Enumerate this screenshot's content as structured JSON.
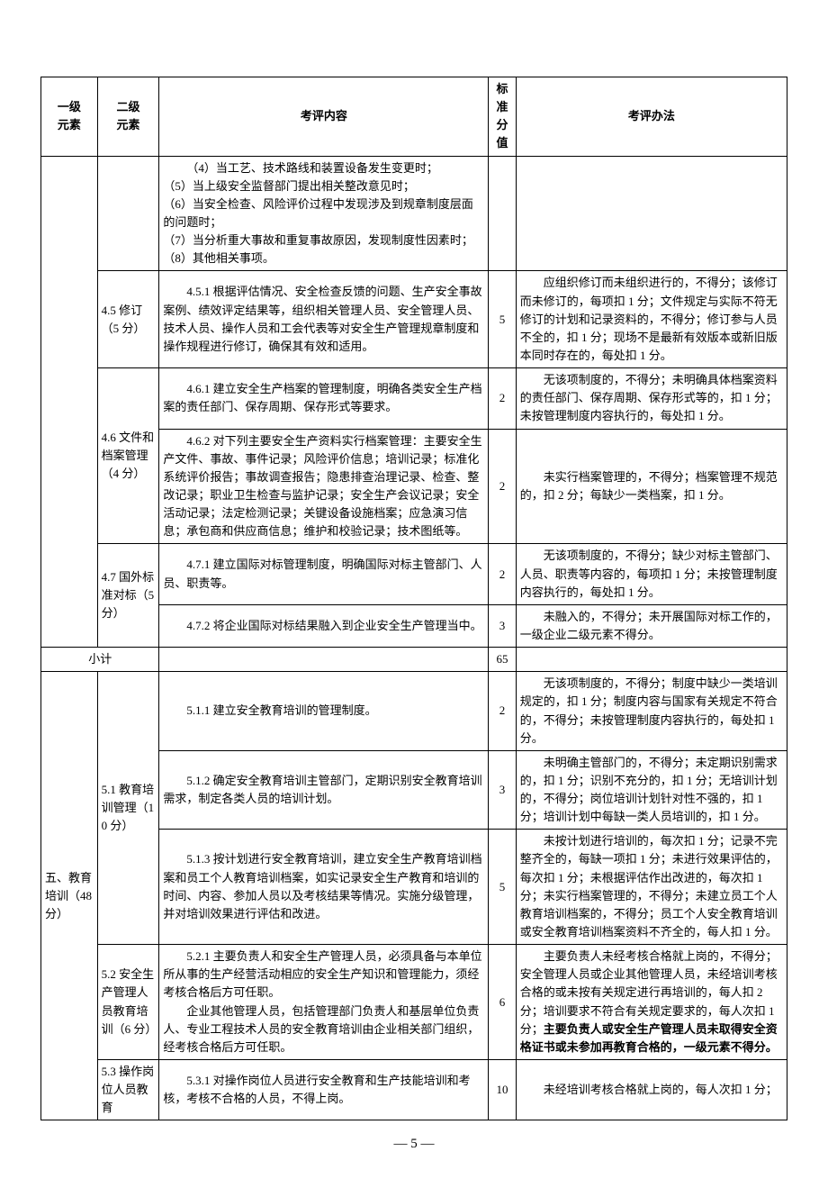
{
  "headers": {
    "col1": "一级\n元素",
    "col2": "二级\n元素",
    "col3": "考评内容",
    "col4": "标准\n分值",
    "col5": "考评办法"
  },
  "rows": [
    {
      "content": "（4）当工艺、技术路线和装置设备发生变更时；\n（5）当上级安全监督部门提出相关整改意见时；\n（6）当安全检查、风险评价过程中发现涉及到规章制度层面的问题时；\n（7）当分析重大事故和重复事故原因，发现制度性因素时；\n（8）其他相关事项。",
      "score": "",
      "method": ""
    },
    {
      "l2": "4.5 修订（5 分）",
      "content": "4.5.1 根据评估情况、安全检查反馈的问题、生产安全事故案例、绩效评定结果等，组织相关管理人员、安全管理人员、技术人员、操作人员和工会代表等对安全生产管理规章制度和操作规程进行修订，确保其有效和适用。",
      "score": "5",
      "method": "应组织修订而未组织进行的，不得分；该修订而未修订的，每项扣 1 分；文件规定与实际不符无修订的计划和记录资料的，不得分；修订参与人员不全的，扣 1 分；现场不是最新有效版本或新旧版本同时存在的，每处扣 1 分。"
    },
    {
      "l2": "4.6 文件和档案管理（4 分）",
      "l2_rowspan": 2,
      "content": "4.6.1 建立安全生产档案的管理制度，明确各类安全生产档案的责任部门、保存周期、保存形式等要求。",
      "score": "2",
      "method": "无该项制度的，不得分；未明确具体档案资料的责任部门、保存周期、保存形式等的，扣 1 分；未按管理制度内容执行的，每处扣 1 分。"
    },
    {
      "content": "4.6.2 对下列主要安全生产资料实行档案管理：主要安全生产文件、事故、事件记录；风险评价信息；培训记录；标准化系统评价报告；事故调查报告；隐患排查治理记录、检查、整改记录；职业卫生检查与监护记录；安全生产会议记录；安全活动记录；法定检测记录；关键设备设施档案；应急演习信息；承包商和供应商信息；维护和校验记录；技术图纸等。",
      "score": "2",
      "method": "未实行档案管理的，不得分；档案管理不规范的，扣 2 分；每缺少一类档案，扣 1 分。"
    },
    {
      "l2": "4.7 国外标准对标（5 分）",
      "l2_rowspan": 2,
      "content": "4.7.1 建立国际对标管理制度，明确国际对标主管部门、人员、职责等。",
      "score": "2",
      "method": "无该项制度的，不得分；缺少对标主管部门、人员、职责等内容的，每项扣 1 分；未按管理制度内容执行的，每处扣 1 分。"
    },
    {
      "content": "4.7.2 将企业国际对标结果融入到企业安全生产管理当中。",
      "score": "3",
      "method": "未融入的，不得分；未开展国际对标工作的，一级企业二级元素不得分。"
    }
  ],
  "subtotal": {
    "label": "小计",
    "score": "65"
  },
  "section5": {
    "l1": "五、教育培训（48 分）",
    "rows": [
      {
        "l2": "5.1 教育培训管理（10 分）",
        "l2_rowspan": 3,
        "content": "5.1.1 建立安全教育培训的管理制度。",
        "score": "2",
        "method": "无该项制度的，不得分；制度中缺少一类培训规定的，扣 1 分；制度内容与国家有关规定不符合的，不得分；未按管理制度内容执行的，每处扣 1 分。"
      },
      {
        "content": "5.1.2 确定安全教育培训主管部门，定期识别安全教育培训需求，制定各类人员的培训计划。",
        "score": "3",
        "method": "未明确主管部门的，不得分；未定期识别需求的，扣 1 分；识别不充分的，扣 1 分；无培训计划的，不得分；岗位培训计划针对性不强的，扣 1 分；培训计划中每缺一类人员培训的，扣 1 分。"
      },
      {
        "content": "5.1.3 按计划进行安全教育培训，建立安全生产教育培训档案和员工个人教育培训档案，如实记录安全生产教育和培训的时间、内容、参加人员以及考核结果等情况。实施分级管理，并对培训效果进行评估和改进。",
        "score": "5",
        "method": "未按计划进行培训的，每次扣 1 分；记录不完整齐全的，每缺一项扣 1 分；未进行效果评估的，每次扣 1 分；未根据评估作出改进的，每次扣 1 分；未实行档案管理的，不得分；未建立员工个人教育培训档案的，不得分；员工个人安全教育培训或安全教育培训档案资料不齐全的，每人扣 1 分。"
      },
      {
        "l2": "5.2 安全生产管理人员教育培训（6 分）",
        "content": "5.2.1 主要负责人和安全生产管理人员，必须具备与本单位所从事的生产经营活动相应的安全生产知识和管理能力，须经考核合格后方可任职。\n　　企业其他管理人员，包括管理部门负责人和基层单位负责人、专业工程技术人员的安全教育培训由企业相关部门组织，经考核合格后方可任职。",
        "score": "6",
        "method_pre": "主要负责人未经考核合格就上岗的，不得分；安全管理人员或企业其他管理人员，未经培训考核合格的或未按有关规定进行再培训的，每人扣 2 分；培训要求不符合有关规定要求的，每人次扣 1 分；",
        "method_bold": "主要负责人或安全生产管理人员未取得安全资格证书或未参加再教育合格的，一级元素不得分。"
      },
      {
        "l2": "5.3 操作岗位人员教育",
        "content": "5.3.1 对操作岗位人员进行安全教育和生产技能培训和考核，考核不合格的人员，不得上岗。",
        "score": "10",
        "method": "未经培训考核合格就上岗的，每人次扣 1 分；"
      }
    ]
  },
  "pageNumber": "— 5 —"
}
